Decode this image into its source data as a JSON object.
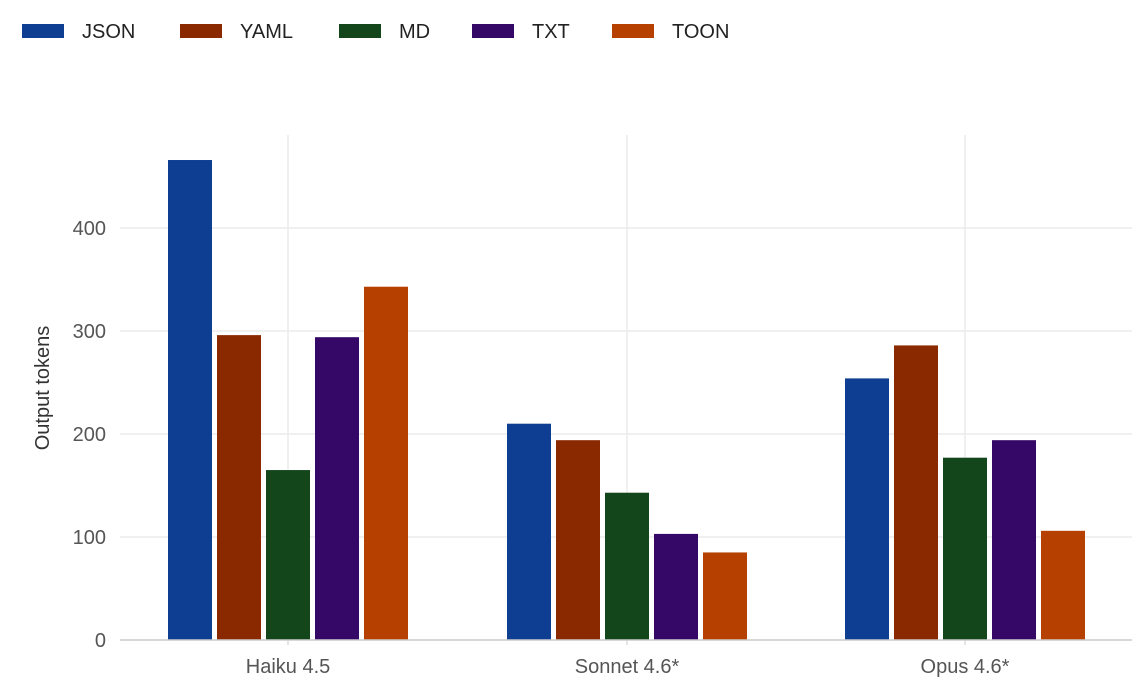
{
  "chart_data": {
    "type": "bar",
    "title": "",
    "xlabel": "",
    "ylabel": "Output tokens",
    "ylim": [
      0,
      490
    ],
    "yticks": [
      0,
      100,
      200,
      300,
      400
    ],
    "grid": true,
    "legend_position": "top-left",
    "categories": [
      "Haiku 4.5",
      "Sonnet 4.6*",
      "Opus 4.6*"
    ],
    "series": [
      {
        "name": "JSON",
        "color": "#0d3e91",
        "values": [
          466,
          210,
          254
        ]
      },
      {
        "name": "YAML",
        "color": "#8a2800",
        "values": [
          296,
          194,
          286
        ]
      },
      {
        "name": "MD",
        "color": "#13461b",
        "values": [
          165,
          143,
          177
        ]
      },
      {
        "name": "TXT",
        "color": "#350868",
        "values": [
          294,
          103,
          194
        ]
      },
      {
        "name": "TOON",
        "color": "#b54000",
        "values": [
          343,
          85,
          106
        ]
      }
    ]
  }
}
